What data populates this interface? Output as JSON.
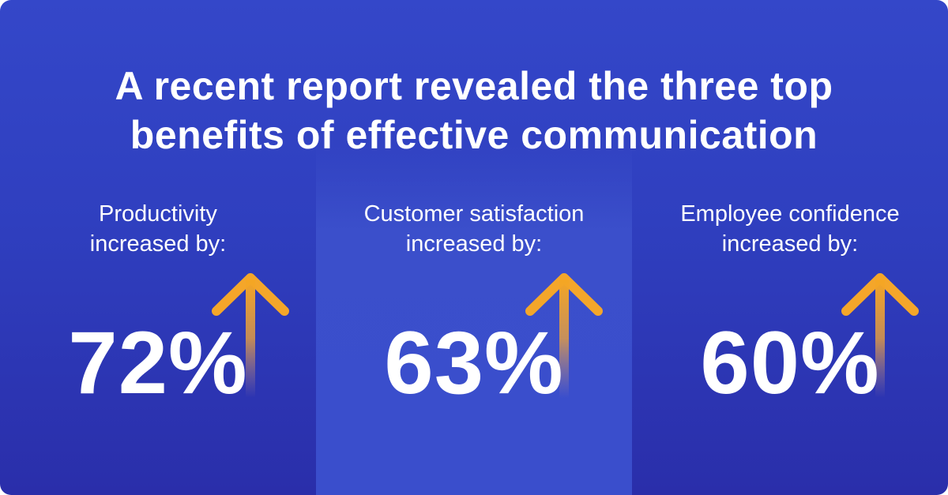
{
  "headline": {
    "line1": "A recent report revealed the three top",
    "line2": "benefits of effective communication"
  },
  "stats": [
    {
      "label_line1": "Productivity",
      "label_line2": "increased by:",
      "value": "72%"
    },
    {
      "label_line1": "Customer satisfaction",
      "label_line2": "increased by:",
      "value": "63%"
    },
    {
      "label_line1": "Employee confidence",
      "label_line2": "increased by:",
      "value": "60%"
    }
  ],
  "colors": {
    "background": "#3040c0",
    "middle_panel": "#3a4ecc",
    "text": "#ffffff",
    "arrow": "#f5a623"
  },
  "icons": [
    "up-arrow-icon"
  ]
}
